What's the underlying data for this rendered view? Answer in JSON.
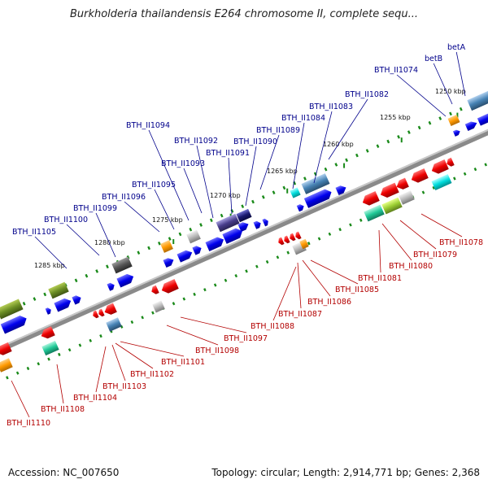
{
  "title": "Burkholderia thailandensis E264 chromosome II, complete sequ...",
  "footer": {
    "accession": "Accession: NC_007650",
    "summary": "Topology: circular; Length: 2,914,771 bp; Genes: 2,368"
  },
  "ticks": [
    "1250 kbp",
    "1255 kbp",
    "1260 kbp",
    "1265 kbp",
    "1270 kbp",
    "1275 kbp",
    "1280 kbp",
    "1285 kbp"
  ],
  "plus_labels": [
    "betA",
    "betB",
    "BTH_II1074",
    "BTH_II1082",
    "BTH_II1083",
    "BTH_II1084",
    "BTH_II1089",
    "BTH_II1090",
    "BTH_II1091",
    "BTH_II1092",
    "BTH_II1093",
    "BTH_II1094",
    "BTH_II1095",
    "BTH_II1096",
    "BTH_II1099",
    "BTH_II1100",
    "BTH_II1105"
  ],
  "minus_labels": [
    "BTH_II1078",
    "BTH_II1079",
    "BTH_II1080",
    "BTH_II1081",
    "BTH_II1085",
    "BTH_II1086",
    "BTH_II1087",
    "BTH_II1088",
    "BTH_II1097",
    "BTH_II1098",
    "BTH_II1101",
    "BTH_II1102",
    "BTH_II1103",
    "BTH_II1104",
    "BTH_II1108",
    "BTH_II1110"
  ],
  "colors": {
    "backbone": "#808080",
    "plus_gene": "#0000ee",
    "minus_gene": "#ee0000",
    "plus_label": "#00008b",
    "minus_label": "#b30000",
    "dot": "#1a8a1a"
  }
}
